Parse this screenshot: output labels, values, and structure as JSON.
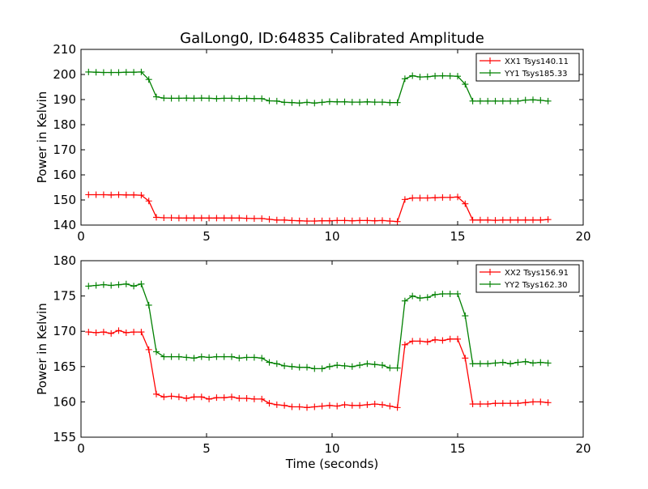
{
  "title": "GalLong0, ID:64835 Calibrated Amplitude",
  "chart_data": [
    {
      "type": "line",
      "title": "GalLong0, ID:64835 Calibrated Amplitude",
      "xlabel": "",
      "ylabel": "Power in Kelvin",
      "xlim": [
        0,
        20
      ],
      "ylim": [
        140,
        210
      ],
      "xticks": [
        0,
        5,
        10,
        15,
        20
      ],
      "yticks": [
        140,
        150,
        160,
        170,
        180,
        190,
        200,
        210
      ],
      "grid": false,
      "legend_position": "top-right",
      "x": [
        0.3,
        0.6,
        0.9,
        1.2,
        1.5,
        1.8,
        2.1,
        2.4,
        2.7,
        3.0,
        3.3,
        3.6,
        3.9,
        4.2,
        4.5,
        4.8,
        5.1,
        5.4,
        5.7,
        6.0,
        6.3,
        6.6,
        6.9,
        7.2,
        7.5,
        7.8,
        8.1,
        8.4,
        8.7,
        9.0,
        9.3,
        9.6,
        9.9,
        10.2,
        10.5,
        10.8,
        11.1,
        11.4,
        11.7,
        12.0,
        12.3,
        12.6,
        12.9,
        13.2,
        13.5,
        13.8,
        14.1,
        14.4,
        14.7,
        15.0,
        15.3,
        15.6,
        15.9,
        16.2,
        16.5,
        16.8,
        17.1,
        17.4,
        17.7,
        18.0,
        18.3,
        18.6
      ],
      "series": [
        {
          "name": "XX1 Tsys140.11",
          "color": "#ff0000",
          "values": [
            152.1,
            152.1,
            152.1,
            152.0,
            152.1,
            152.0,
            152.0,
            151.9,
            149.6,
            143.1,
            142.9,
            142.9,
            142.8,
            142.8,
            142.8,
            142.8,
            142.8,
            142.8,
            142.8,
            142.8,
            142.8,
            142.7,
            142.6,
            142.6,
            142.3,
            142.0,
            142.0,
            141.8,
            141.7,
            141.6,
            141.6,
            141.7,
            141.7,
            141.8,
            141.8,
            141.7,
            141.8,
            141.8,
            141.7,
            141.8,
            141.6,
            141.4,
            150.2,
            150.8,
            150.8,
            150.8,
            150.9,
            151.0,
            151.0,
            151.2,
            148.5,
            142.0,
            142.0,
            142.0,
            141.9,
            142.0,
            142.0,
            142.0,
            142.0,
            142.0,
            142.0,
            142.2
          ]
        },
        {
          "name": "YY1 Tsys185.33",
          "color": "#008000",
          "values": [
            201.0,
            200.9,
            200.8,
            200.8,
            200.8,
            200.9,
            200.9,
            201.0,
            198.0,
            191.1,
            190.6,
            190.5,
            190.5,
            190.6,
            190.5,
            190.6,
            190.5,
            190.4,
            190.5,
            190.5,
            190.4,
            190.5,
            190.4,
            190.4,
            189.5,
            189.4,
            188.9,
            188.8,
            188.6,
            188.9,
            188.6,
            188.9,
            189.2,
            189.1,
            189.1,
            189.0,
            189.0,
            189.1,
            189.0,
            189.0,
            188.8,
            188.8,
            198.3,
            199.5,
            199.0,
            199.1,
            199.4,
            199.5,
            199.4,
            199.3,
            196.1,
            189.4,
            189.4,
            189.4,
            189.4,
            189.4,
            189.4,
            189.4,
            189.8,
            189.9,
            189.7,
            189.4
          ]
        }
      ]
    },
    {
      "type": "line",
      "title": "",
      "xlabel": "Time (seconds)",
      "ylabel": "Power in Kelvin",
      "xlim": [
        0,
        20
      ],
      "ylim": [
        155,
        180
      ],
      "xticks": [
        0,
        5,
        10,
        15,
        20
      ],
      "yticks": [
        155,
        160,
        165,
        170,
        175,
        180
      ],
      "grid": false,
      "legend_position": "top-right",
      "x": [
        0.3,
        0.6,
        0.9,
        1.2,
        1.5,
        1.8,
        2.1,
        2.4,
        2.7,
        3.0,
        3.3,
        3.6,
        3.9,
        4.2,
        4.5,
        4.8,
        5.1,
        5.4,
        5.7,
        6.0,
        6.3,
        6.6,
        6.9,
        7.2,
        7.5,
        7.8,
        8.1,
        8.4,
        8.7,
        9.0,
        9.3,
        9.6,
        9.9,
        10.2,
        10.5,
        10.8,
        11.1,
        11.4,
        11.7,
        12.0,
        12.3,
        12.6,
        12.9,
        13.2,
        13.5,
        13.8,
        14.1,
        14.4,
        14.7,
        15.0,
        15.3,
        15.6,
        15.9,
        16.2,
        16.5,
        16.8,
        17.1,
        17.4,
        17.7,
        18.0,
        18.3,
        18.6
      ],
      "series": [
        {
          "name": "XX2 Tsys156.91",
          "color": "#ff0000",
          "values": [
            169.9,
            169.8,
            169.9,
            169.7,
            170.1,
            169.8,
            169.9,
            169.9,
            167.4,
            161.1,
            160.7,
            160.8,
            160.7,
            160.5,
            160.7,
            160.7,
            160.4,
            160.6,
            160.6,
            160.7,
            160.5,
            160.5,
            160.4,
            160.4,
            159.8,
            159.6,
            159.5,
            159.3,
            159.3,
            159.2,
            159.3,
            159.4,
            159.5,
            159.4,
            159.6,
            159.5,
            159.5,
            159.6,
            159.7,
            159.6,
            159.4,
            159.2,
            168.1,
            168.6,
            168.6,
            168.5,
            168.8,
            168.7,
            168.9,
            168.9,
            166.2,
            159.7,
            159.7,
            159.7,
            159.8,
            159.8,
            159.8,
            159.8,
            159.9,
            160.0,
            160.0,
            159.9
          ]
        },
        {
          "name": "YY2 Tsys162.30",
          "color": "#008000",
          "values": [
            176.4,
            176.5,
            176.6,
            176.5,
            176.6,
            176.7,
            176.4,
            176.7,
            173.7,
            167.1,
            166.4,
            166.4,
            166.4,
            166.3,
            166.2,
            166.4,
            166.3,
            166.4,
            166.4,
            166.4,
            166.2,
            166.3,
            166.3,
            166.2,
            165.6,
            165.4,
            165.1,
            165.0,
            164.9,
            164.9,
            164.7,
            164.7,
            165.0,
            165.2,
            165.1,
            165.0,
            165.2,
            165.4,
            165.3,
            165.2,
            164.8,
            164.8,
            174.3,
            175.0,
            174.7,
            174.8,
            175.2,
            175.3,
            175.3,
            175.3,
            172.2,
            165.4,
            165.4,
            165.4,
            165.5,
            165.6,
            165.4,
            165.6,
            165.7,
            165.5,
            165.6,
            165.5
          ]
        }
      ]
    }
  ]
}
